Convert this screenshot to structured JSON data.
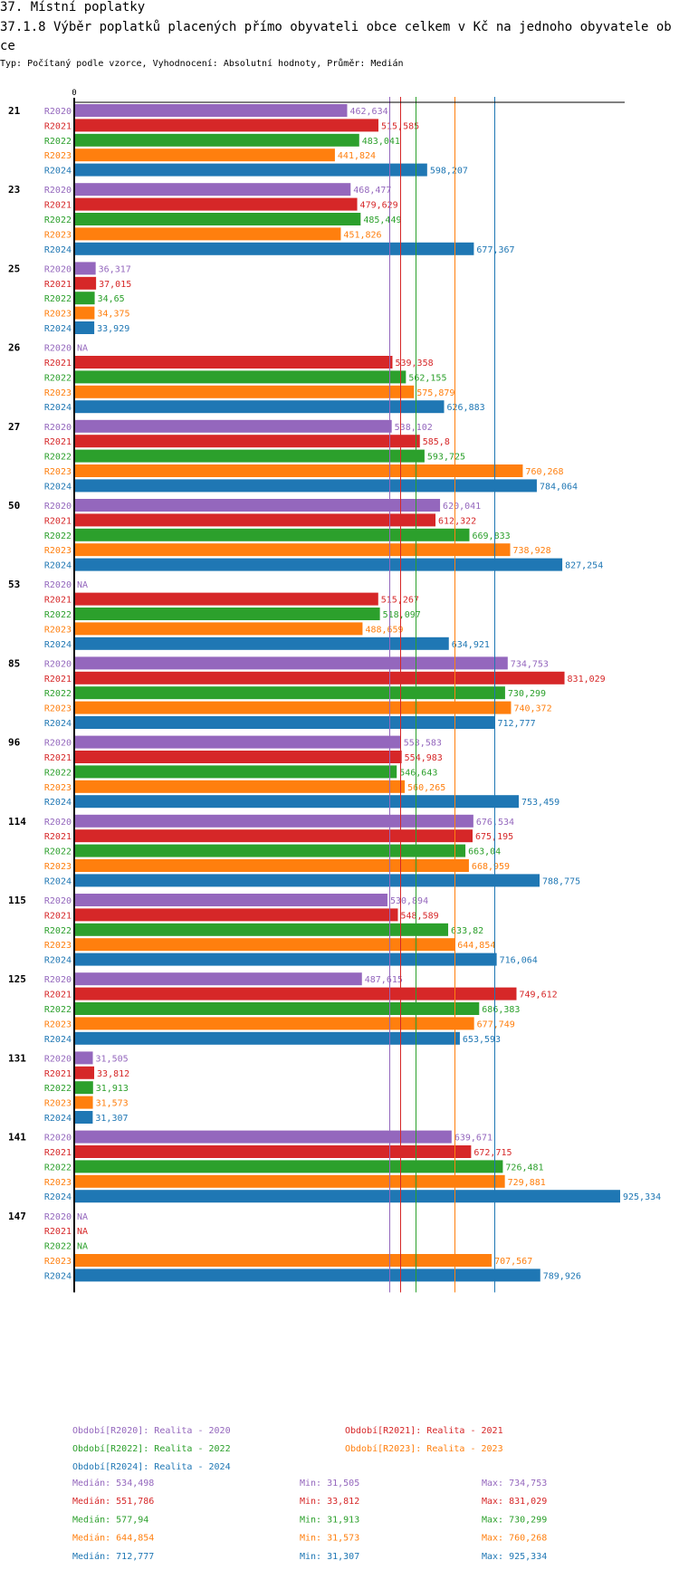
{
  "header": {
    "section_title": "37. Místní poplatky",
    "chart_title": "37.1.8 Výběr poplatků placených přímo obyvateli obce celkem  v Kč na jednoho obyvatele obce",
    "subtitle": "Typ: Počítaný podle vzorce, Vyhodnocení: Absolutní hodnoty, Průměr: Medián"
  },
  "colors": {
    "R2020": "#9467bd",
    "R2021": "#d62728",
    "R2022": "#2ca02c",
    "R2023": "#ff7f0e",
    "R2024": "#1f77b4",
    "axis": "#000000"
  },
  "chart_data": {
    "type": "bar",
    "orientation": "horizontal",
    "title": "37.1.8 Výběr poplatků placených přímo obyvateli obce celkem  v Kč na jednoho obyvatele obce",
    "xlabel": "",
    "ylabel": "",
    "x_tick_labels": [
      "0"
    ],
    "xlim": [
      0,
      925.334
    ],
    "grid": false,
    "legend_position": "bottom",
    "series_names": [
      "R2020",
      "R2021",
      "R2022",
      "R2023",
      "R2024"
    ],
    "categories": [
      "21",
      "23",
      "25",
      "26",
      "27",
      "50",
      "53",
      "85",
      "96",
      "114",
      "115",
      "125",
      "131",
      "141",
      "147"
    ],
    "series": [
      {
        "name": "R2020",
        "values": [
          462.634,
          468.477,
          36.317,
          null,
          538.102,
          620.041,
          null,
          734.753,
          553.583,
          676.534,
          530.894,
          487.615,
          31.505,
          639.671,
          null
        ],
        "labels": [
          "462,634",
          "468,477",
          "36,317",
          "NA",
          "538,102",
          "620,041",
          "NA",
          "734,753",
          "553,583",
          "676,534",
          "530,894",
          "487,615",
          "31,505",
          "639,671",
          "NA"
        ]
      },
      {
        "name": "R2021",
        "values": [
          515.585,
          479.629,
          37.015,
          539.358,
          585.8,
          612.322,
          515.267,
          831.029,
          554.983,
          675.195,
          548.589,
          749.612,
          33.812,
          672.715,
          null
        ],
        "labels": [
          "515,585",
          "479,629",
          "37,015",
          "539,358",
          "585,8",
          "612,322",
          "515,267",
          "831,029",
          "554,983",
          "675,195",
          "548,589",
          "749,612",
          "33,812",
          "672,715",
          "NA"
        ]
      },
      {
        "name": "R2022",
        "values": [
          483.041,
          485.449,
          34.65,
          562.155,
          593.725,
          669.833,
          518.097,
          730.299,
          546.643,
          663.04,
          633.82,
          686.383,
          31.913,
          726.481,
          null
        ],
        "labels": [
          "483,041",
          "485,449",
          "34,65",
          "562,155",
          "593,725",
          "669,833",
          "518,097",
          "730,299",
          "546,643",
          "663,04",
          "633,82",
          "686,383",
          "31,913",
          "726,481",
          "NA"
        ]
      },
      {
        "name": "R2023",
        "values": [
          441.824,
          451.826,
          34.375,
          575.879,
          760.268,
          738.928,
          488.659,
          740.372,
          560.265,
          668.959,
          644.854,
          677.749,
          31.573,
          729.881,
          707.567
        ],
        "labels": [
          "441,824",
          "451,826",
          "34,375",
          "575,879",
          "760,268",
          "738,928",
          "488,659",
          "740,372",
          "560,265",
          "668,959",
          "644,854",
          "677,749",
          "31,573",
          "729,881",
          "707,567"
        ]
      },
      {
        "name": "R2024",
        "values": [
          598.207,
          677.367,
          33.929,
          626.883,
          784.064,
          827.254,
          634.921,
          712.777,
          753.459,
          788.775,
          716.064,
          653.593,
          31.307,
          925.334,
          789.926
        ],
        "labels": [
          "598,207",
          "677,367",
          "33,929",
          "626,883",
          "784,064",
          "827,254",
          "634,921",
          "712,777",
          "753,459",
          "788,775",
          "716,064",
          "653,593",
          "31,307",
          "925,334",
          "789,926"
        ]
      }
    ],
    "medians": {
      "R2020": 534.498,
      "R2021": 551.786,
      "R2022": 577.94,
      "R2023": 644.854,
      "R2024": 712.777
    },
    "legend": [
      {
        "series": "R2020",
        "label": "Období[R2020]: Realita - 2020"
      },
      {
        "series": "R2021",
        "label": "Období[R2021]: Realita - 2021"
      },
      {
        "series": "R2022",
        "label": "Období[R2022]: Realita - 2022"
      },
      {
        "series": "R2023",
        "label": "Období[R2023]: Realita - 2023"
      },
      {
        "series": "R2024",
        "label": "Období[R2024]: Realita - 2024"
      }
    ],
    "stats": [
      {
        "series": "R2020",
        "median": "Medián: 534,498",
        "min": "Min: 31,505",
        "max": "Max: 734,753"
      },
      {
        "series": "R2021",
        "median": "Medián: 551,786",
        "min": "Min: 33,812",
        "max": "Max: 831,029"
      },
      {
        "series": "R2022",
        "median": "Medián: 577,94",
        "min": "Min: 31,913",
        "max": "Max: 730,299"
      },
      {
        "series": "R2023",
        "median": "Medián: 644,854",
        "min": "Min: 31,573",
        "max": "Max: 760,268"
      },
      {
        "series": "R2024",
        "median": "Medián: 712,777",
        "min": "Min: 31,307",
        "max": "Max: 925,334"
      }
    ]
  }
}
